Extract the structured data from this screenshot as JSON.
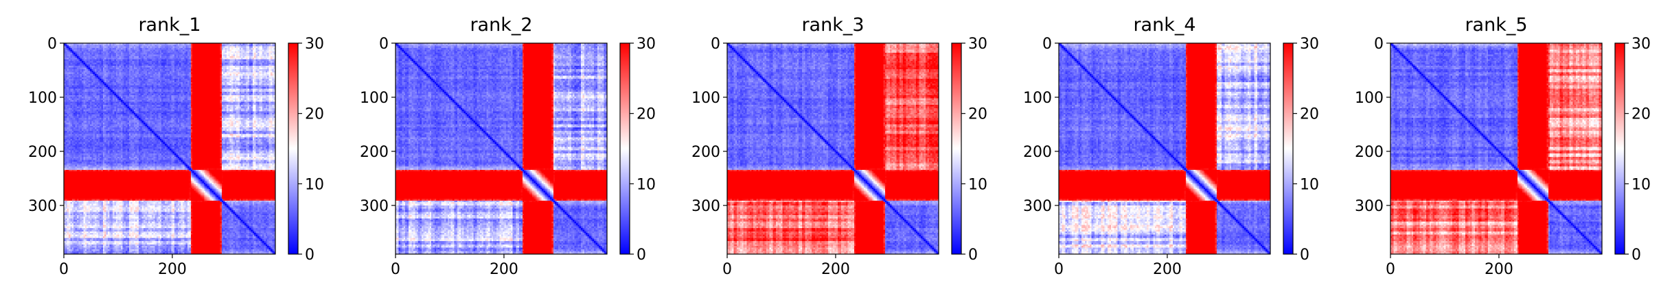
{
  "chart_data": [
    {
      "type": "heatmap",
      "title": "rank_1",
      "matrix_size": 390,
      "xlim": [
        0,
        390
      ],
      "ylim": [
        390,
        0
      ],
      "x_ticks": [
        0,
        200
      ],
      "y_ticks": [
        0,
        100,
        200,
        300
      ],
      "colorbar": {
        "min": 0,
        "max": 30,
        "ticks": [
          0,
          10,
          20,
          30
        ],
        "cmap": [
          "#0000ff",
          "#ffffff",
          "#ff0000"
        ]
      },
      "domains": [
        [
          0,
          235
        ],
        [
          235,
          290
        ],
        [
          290,
          390
        ]
      ],
      "inter_domain_mean": {
        "1-3": 11,
        "1-2": 30,
        "2-3": 30
      }
    },
    {
      "type": "heatmap",
      "title": "rank_2",
      "matrix_size": 390,
      "xlim": [
        0,
        390
      ],
      "ylim": [
        390,
        0
      ],
      "x_ticks": [
        0,
        200
      ],
      "y_ticks": [
        0,
        100,
        200,
        300
      ],
      "colorbar": {
        "min": 0,
        "max": 30,
        "ticks": [
          0,
          10,
          20,
          30
        ],
        "cmap": [
          "#0000ff",
          "#ffffff",
          "#ff0000"
        ]
      },
      "domains": [
        [
          0,
          235
        ],
        [
          235,
          290
        ],
        [
          290,
          390
        ]
      ],
      "inter_domain_mean": {
        "1-3": 10,
        "1-2": 30,
        "2-3": 30
      }
    },
    {
      "type": "heatmap",
      "title": "rank_3",
      "matrix_size": 390,
      "xlim": [
        0,
        390
      ],
      "ylim": [
        390,
        0
      ],
      "x_ticks": [
        0,
        200
      ],
      "y_ticks": [
        0,
        100,
        200,
        300
      ],
      "colorbar": {
        "min": 0,
        "max": 30,
        "ticks": [
          0,
          10,
          20,
          30
        ],
        "cmap": [
          "#0000ff",
          "#ffffff",
          "#ff0000"
        ]
      },
      "domains": [
        [
          0,
          235
        ],
        [
          235,
          290
        ],
        [
          290,
          390
        ]
      ],
      "inter_domain_mean": {
        "1-3": 24,
        "1-2": 30,
        "2-3": 30
      }
    },
    {
      "type": "heatmap",
      "title": "rank_4",
      "matrix_size": 390,
      "xlim": [
        0,
        390
      ],
      "ylim": [
        390,
        0
      ],
      "x_ticks": [
        0,
        200
      ],
      "y_ticks": [
        0,
        100,
        200,
        300
      ],
      "colorbar": {
        "min": 0,
        "max": 30,
        "ticks": [
          0,
          10,
          20,
          30
        ],
        "cmap": [
          "#0000ff",
          "#ffffff",
          "#ff0000"
        ]
      },
      "domains": [
        [
          0,
          235
        ],
        [
          235,
          290
        ],
        [
          290,
          390
        ]
      ],
      "inter_domain_mean": {
        "1-3": 12,
        "1-2": 30,
        "2-3": 30
      }
    },
    {
      "type": "heatmap",
      "title": "rank_5",
      "matrix_size": 390,
      "xlim": [
        0,
        390
      ],
      "ylim": [
        390,
        0
      ],
      "x_ticks": [
        0,
        200
      ],
      "y_ticks": [
        0,
        100,
        200,
        300
      ],
      "colorbar": {
        "min": 0,
        "max": 30,
        "ticks": [
          0,
          10,
          20,
          30
        ],
        "cmap": [
          "#0000ff",
          "#ffffff",
          "#ff0000"
        ]
      },
      "domains": [
        [
          0,
          235
        ],
        [
          235,
          290
        ],
        [
          290,
          390
        ]
      ],
      "inter_domain_mean": {
        "1-3": 22,
        "1-2": 30,
        "2-3": 30
      }
    }
  ]
}
